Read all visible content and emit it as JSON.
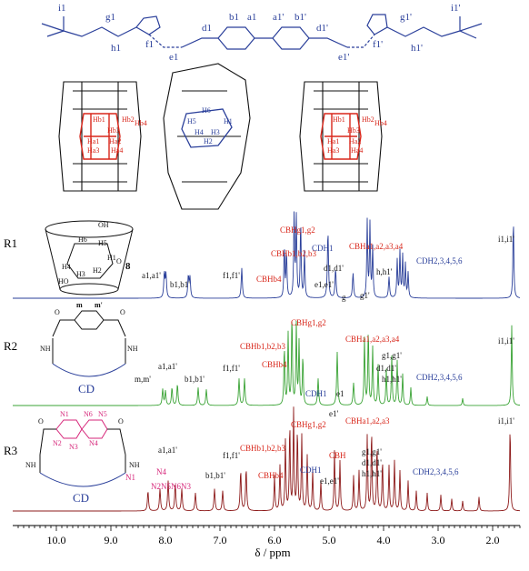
{
  "chart_data": {
    "type": "line",
    "title": "",
    "xlabel": "δ / ppm",
    "ylabel": "",
    "xlim": [
      10.8,
      1.5
    ],
    "x_ticks": [
      "10.0",
      "9.0",
      "8.0",
      "7.0",
      "6.0",
      "5.0",
      "4.0",
      "3.0",
      "2.0"
    ],
    "x_tick_values": [
      10.0,
      9.0,
      8.0,
      7.0,
      6.0,
      5.0,
      4.0,
      3.0,
      2.0
    ],
    "colors": {
      "R1": "#2a3f9a",
      "R2": "#3aa335",
      "R3": "#8e1b1b",
      "cb_label": "#d8261a",
      "cd_label": "#2a3f9a",
      "naphth_label": "#d6267a"
    },
    "series": [
      {
        "name": "R1",
        "baseline": 0.0,
        "peaks": [
          {
            "ppm": 8.02,
            "h": 0.3,
            "w": 0.012
          },
          {
            "ppm": 7.99,
            "h": 0.28,
            "w": 0.012
          },
          {
            "ppm": 7.58,
            "h": 0.26,
            "w": 0.012
          },
          {
            "ppm": 7.55,
            "h": 0.24,
            "w": 0.012
          },
          {
            "ppm": 6.6,
            "h": 0.36,
            "w": 0.012
          },
          {
            "ppm": 5.82,
            "h": 0.6,
            "w": 0.01
          },
          {
            "ppm": 5.78,
            "h": 0.55,
            "w": 0.01
          },
          {
            "ppm": 5.64,
            "h": 1.0,
            "w": 0.01
          },
          {
            "ppm": 5.6,
            "h": 0.95,
            "w": 0.01
          },
          {
            "ppm": 5.52,
            "h": 0.9,
            "w": 0.01
          },
          {
            "ppm": 5.45,
            "h": 0.55,
            "w": 0.01
          },
          {
            "ppm": 5.02,
            "h": 0.8,
            "w": 0.012
          },
          {
            "ppm": 4.88,
            "h": 0.35,
            "w": 0.012
          },
          {
            "ppm": 4.56,
            "h": 0.3,
            "w": 0.012
          },
          {
            "ppm": 4.3,
            "h": 0.92,
            "w": 0.01
          },
          {
            "ppm": 4.25,
            "h": 0.88,
            "w": 0.01
          },
          {
            "ppm": 4.2,
            "h": 0.6,
            "w": 0.01
          },
          {
            "ppm": 3.9,
            "h": 0.25,
            "w": 0.012
          },
          {
            "ppm": 3.75,
            "h": 0.45,
            "w": 0.01
          },
          {
            "ppm": 3.7,
            "h": 0.55,
            "w": 0.01
          },
          {
            "ppm": 3.65,
            "h": 0.5,
            "w": 0.01
          },
          {
            "ppm": 3.6,
            "h": 0.4,
            "w": 0.01
          },
          {
            "ppm": 3.55,
            "h": 0.3,
            "w": 0.01
          },
          {
            "ppm": 1.62,
            "h": 0.95,
            "w": 0.01
          }
        ]
      },
      {
        "name": "R2",
        "baseline": 0.0,
        "peaks": [
          {
            "ppm": 8.05,
            "h": 0.18,
            "w": 0.012
          },
          {
            "ppm": 8.0,
            "h": 0.16,
            "w": 0.012
          },
          {
            "ppm": 7.88,
            "h": 0.2,
            "w": 0.012
          },
          {
            "ppm": 7.78,
            "h": 0.24,
            "w": 0.012
          },
          {
            "ppm": 7.4,
            "h": 0.2,
            "w": 0.012
          },
          {
            "ppm": 7.25,
            "h": 0.18,
            "w": 0.012
          },
          {
            "ppm": 6.65,
            "h": 0.3,
            "w": 0.012
          },
          {
            "ppm": 6.55,
            "h": 0.3,
            "w": 0.012
          },
          {
            "ppm": 5.82,
            "h": 0.65,
            "w": 0.01
          },
          {
            "ppm": 5.75,
            "h": 0.8,
            "w": 0.01
          },
          {
            "ppm": 5.68,
            "h": 1.0,
            "w": 0.01
          },
          {
            "ppm": 5.6,
            "h": 0.9,
            "w": 0.01
          },
          {
            "ppm": 5.55,
            "h": 0.7,
            "w": 0.01
          },
          {
            "ppm": 5.48,
            "h": 0.55,
            "w": 0.01
          },
          {
            "ppm": 5.2,
            "h": 0.3,
            "w": 0.012
          },
          {
            "ppm": 4.85,
            "h": 0.6,
            "w": 0.012
          },
          {
            "ppm": 4.55,
            "h": 0.25,
            "w": 0.012
          },
          {
            "ppm": 4.35,
            "h": 0.75,
            "w": 0.01
          },
          {
            "ppm": 4.28,
            "h": 0.85,
            "w": 0.01
          },
          {
            "ppm": 4.2,
            "h": 0.65,
            "w": 0.01
          },
          {
            "ppm": 4.1,
            "h": 0.45,
            "w": 0.01
          },
          {
            "ppm": 3.95,
            "h": 0.4,
            "w": 0.01
          },
          {
            "ppm": 3.85,
            "h": 0.55,
            "w": 0.01
          },
          {
            "ppm": 3.75,
            "h": 0.5,
            "w": 0.01
          },
          {
            "ppm": 3.65,
            "h": 0.35,
            "w": 0.01
          },
          {
            "ppm": 3.5,
            "h": 0.2,
            "w": 0.01
          },
          {
            "ppm": 3.2,
            "h": 0.1,
            "w": 0.01
          },
          {
            "ppm": 2.55,
            "h": 0.08,
            "w": 0.01
          },
          {
            "ppm": 1.65,
            "h": 0.9,
            "w": 0.01
          }
        ]
      },
      {
        "name": "R3",
        "baseline": 0.0,
        "peaks": [
          {
            "ppm": 8.32,
            "h": 0.2,
            "w": 0.012
          },
          {
            "ppm": 8.1,
            "h": 0.22,
            "w": 0.012
          },
          {
            "ppm": 7.95,
            "h": 0.3,
            "w": 0.012
          },
          {
            "ppm": 7.82,
            "h": 0.28,
            "w": 0.012
          },
          {
            "ppm": 7.7,
            "h": 0.22,
            "w": 0.012
          },
          {
            "ppm": 7.45,
            "h": 0.18,
            "w": 0.012
          },
          {
            "ppm": 7.1,
            "h": 0.22,
            "w": 0.012
          },
          {
            "ppm": 6.95,
            "h": 0.2,
            "w": 0.012
          },
          {
            "ppm": 6.62,
            "h": 0.4,
            "w": 0.012
          },
          {
            "ppm": 6.52,
            "h": 0.42,
            "w": 0.012
          },
          {
            "ppm": 6.0,
            "h": 0.35,
            "w": 0.01
          },
          {
            "ppm": 5.9,
            "h": 0.45,
            "w": 0.01
          },
          {
            "ppm": 5.8,
            "h": 0.7,
            "w": 0.01
          },
          {
            "ppm": 5.72,
            "h": 0.85,
            "w": 0.01
          },
          {
            "ppm": 5.65,
            "h": 1.0,
            "w": 0.01
          },
          {
            "ppm": 5.58,
            "h": 0.8,
            "w": 0.01
          },
          {
            "ppm": 5.5,
            "h": 0.75,
            "w": 0.01
          },
          {
            "ppm": 5.4,
            "h": 0.55,
            "w": 0.01
          },
          {
            "ppm": 5.3,
            "h": 0.4,
            "w": 0.01
          },
          {
            "ppm": 5.15,
            "h": 0.3,
            "w": 0.01
          },
          {
            "ppm": 4.9,
            "h": 0.6,
            "w": 0.01
          },
          {
            "ppm": 4.8,
            "h": 0.5,
            "w": 0.01
          },
          {
            "ppm": 4.55,
            "h": 0.35,
            "w": 0.01
          },
          {
            "ppm": 4.45,
            "h": 0.4,
            "w": 0.01
          },
          {
            "ppm": 4.3,
            "h": 0.75,
            "w": 0.01
          },
          {
            "ppm": 4.22,
            "h": 0.8,
            "w": 0.01
          },
          {
            "ppm": 4.12,
            "h": 0.65,
            "w": 0.01
          },
          {
            "ppm": 4.02,
            "h": 0.5,
            "w": 0.01
          },
          {
            "ppm": 3.9,
            "h": 0.45,
            "w": 0.01
          },
          {
            "ppm": 3.8,
            "h": 0.5,
            "w": 0.01
          },
          {
            "ppm": 3.7,
            "h": 0.4,
            "w": 0.01
          },
          {
            "ppm": 3.55,
            "h": 0.3,
            "w": 0.01
          },
          {
            "ppm": 3.4,
            "h": 0.2,
            "w": 0.01
          },
          {
            "ppm": 3.2,
            "h": 0.18,
            "w": 0.01
          },
          {
            "ppm": 2.95,
            "h": 0.16,
            "w": 0.01
          },
          {
            "ppm": 2.75,
            "h": 0.12,
            "w": 0.01
          },
          {
            "ppm": 2.55,
            "h": 0.1,
            "w": 0.01
          },
          {
            "ppm": 2.25,
            "h": 0.14,
            "w": 0.01
          },
          {
            "ppm": 1.68,
            "h": 0.85,
            "w": 0.01
          }
        ]
      }
    ]
  },
  "structure_labels": {
    "axle": [
      "i1",
      "g1",
      "h1",
      "f1",
      "e1",
      "d1",
      "b1",
      "a1",
      "a1'",
      "b1'",
      "d1'",
      "e1'",
      "f1'",
      "g1'",
      "h1'",
      "i1'"
    ],
    "cb_left": [
      "Hb1",
      "Hb2",
      "Hb3",
      "Hb4",
      "Ha1",
      "Ha2",
      "Ha3",
      "Ha4"
    ],
    "cd_center": [
      "H6",
      "H5",
      "H4",
      "H3",
      "H2",
      "H1"
    ],
    "cb_right": [
      "Hb1",
      "Hb2",
      "Hb3",
      "Hb4",
      "Ha1",
      "Ha2",
      "Ha3",
      "Ha4"
    ]
  },
  "rows": {
    "R1": {
      "label": "R1",
      "icon_labels": {
        "oh_top": "OH",
        "h6": "H6",
        "h5": "H5",
        "h1": "H1",
        "h2": "H2",
        "h4": "H4",
        "h3": "H3",
        "oh_bottom": "HO",
        "n8": "8",
        "o": "O"
      },
      "peak_labels": {
        "a": "a1,a1'",
        "b": "b1,b1'",
        "f": "f1,f1'",
        "cb_hg": "CBHg1,g2",
        "cb_hb": "CBHb1,b2,b3",
        "cb_hb4": "CBHb4",
        "cd_h1": "CDH1",
        "d": "d1,d1'",
        "e": "e1,e1'",
        "g": "g",
        "g1": "g1'",
        "cb_ha": "CBHa1,a2,a3,a4",
        "h": "h,h1'",
        "cd_h23456": "CDH2,3,4,5,6",
        "i": "i1,i1'"
      }
    },
    "R2": {
      "label": "R2",
      "icon_labels": {
        "m": "m",
        "mp": "m'",
        "nh_left": "NH",
        "nh_right": "NH",
        "o1": "O",
        "o2": "O",
        "cd": "CD"
      },
      "peak_labels": {
        "mm": "m,m'",
        "a": "a1,a1'",
        "b": "b1,b1'",
        "f": "f1,f1'",
        "cb_hg": "CBHg1,g2",
        "cb_hb": "CBHb1,b2,b3",
        "cb_hb4": "CBHb4",
        "cd_h1": "CDH1",
        "e1": "e1",
        "e1p": "e1'",
        "cb_ha": "CBHa1,a2,a3,a4",
        "gg": "g1,g1'",
        "dd": "d1,d1'",
        "hh": "h1,h1'",
        "cd_h23456": "CDH2,3,4,5,6",
        "i": "i1,i1'"
      }
    },
    "R3": {
      "label": "R3",
      "icon_labels": {
        "n1": "N1",
        "n6": "N6",
        "n5": "N5",
        "n2": "N2",
        "n3": "N3",
        "n4": "N4",
        "nh_left": "NH",
        "nh_right": "NH",
        "o1": "O",
        "o2": "O",
        "cd": "CD"
      },
      "peak_labels": {
        "a": "a1,a1'",
        "n1": "N1",
        "n4": "N4",
        "n2n5n6n3": "N2N5N6N3",
        "b": "b1,b1'",
        "f": "f1,f1'",
        "cb_hg": "CBHg1,g2",
        "cb_hb": "CBHb1,b2,b3",
        "cb_hb4": "CBHb4",
        "cd_h1": "CDH1",
        "e": "e1,e1'",
        "cb_hb_short": "CBH",
        "cb_ha": "CBHa1,a2,a3",
        "gg": "g1,g1'",
        "dd": "d1,d1'",
        "hh": "h1,h1'",
        "cd_h23456": "CDH2,3,4,5,6",
        "i": "i1,i1'"
      }
    }
  }
}
